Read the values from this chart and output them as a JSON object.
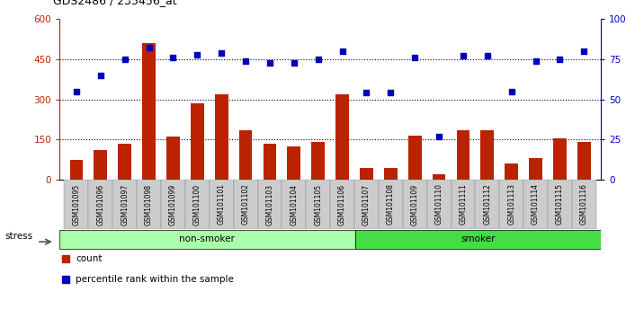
{
  "title": "GDS2486 / 235456_at",
  "samples": [
    "GSM101095",
    "GSM101096",
    "GSM101097",
    "GSM101098",
    "GSM101099",
    "GSM101100",
    "GSM101101",
    "GSM101102",
    "GSM101103",
    "GSM101104",
    "GSM101105",
    "GSM101106",
    "GSM101107",
    "GSM101108",
    "GSM101109",
    "GSM101110",
    "GSM101111",
    "GSM101112",
    "GSM101113",
    "GSM101114",
    "GSM101115",
    "GSM101116"
  ],
  "counts": [
    75,
    110,
    135,
    510,
    160,
    285,
    320,
    185,
    135,
    125,
    140,
    320,
    45,
    45,
    165,
    20,
    185,
    185,
    60,
    80,
    155,
    140
  ],
  "percentile_ranks": [
    55,
    65,
    75,
    82,
    76,
    78,
    79,
    74,
    73,
    73,
    75,
    80,
    54,
    54,
    76,
    27,
    77,
    77,
    55,
    74,
    75,
    80
  ],
  "non_smoker_count": 12,
  "smoker_count": 10,
  "bar_color": "#bb2200",
  "dot_color": "#0000bb",
  "left_ylim": [
    0,
    600
  ],
  "right_ylim": [
    0,
    100
  ],
  "left_yticks": [
    0,
    150,
    300,
    450,
    600
  ],
  "right_yticks": [
    0,
    25,
    50,
    75,
    100
  ],
  "left_yticklabels": [
    "0",
    "150",
    "300",
    "450",
    "600"
  ],
  "right_yticklabels": [
    "0",
    "25",
    "50",
    "75",
    "100%"
  ],
  "hlines": [
    150,
    300,
    450
  ],
  "non_smoker_color": "#aaffaa",
  "smoker_color": "#44dd44",
  "stress_label": "stress",
  "non_smoker_label": "non-smoker",
  "smoker_label": "smoker",
  "legend_count_label": "count",
  "legend_pct_label": "percentile rank within the sample",
  "plot_bg": "#ffffff",
  "tick_bg": "#cccccc",
  "bar_width": 0.55
}
